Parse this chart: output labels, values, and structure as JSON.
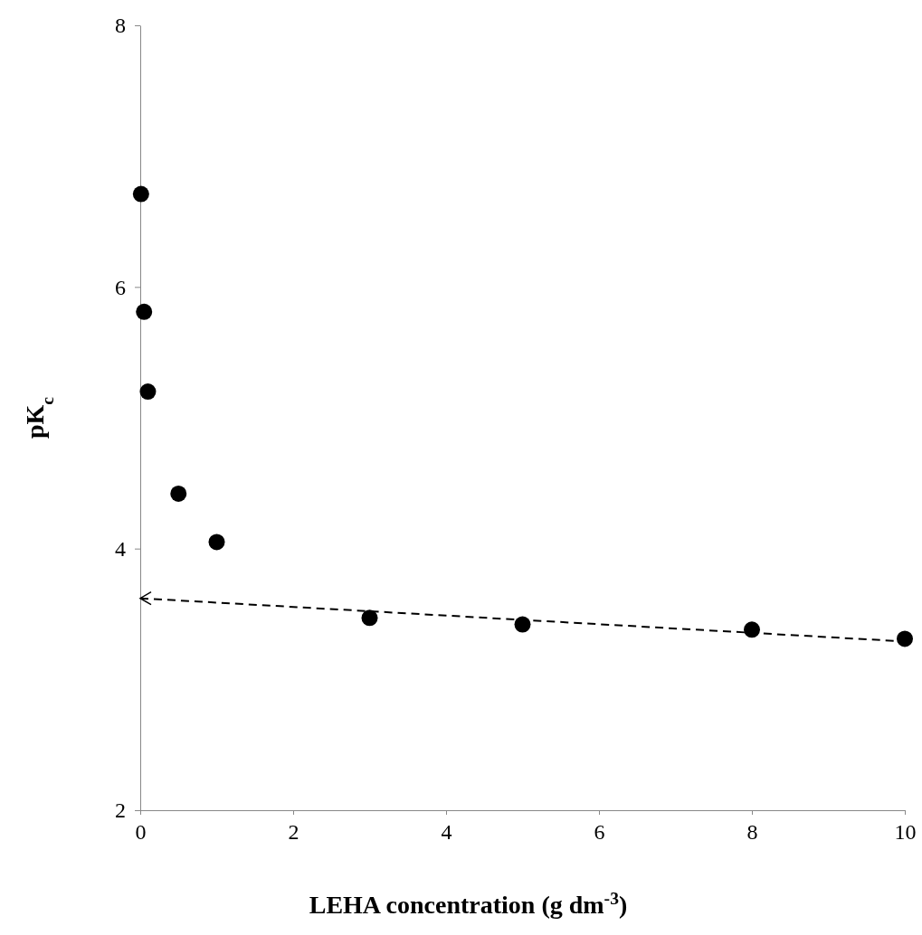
{
  "chart_data": {
    "type": "scatter",
    "xlabel": "LEHA concentration (g dm$^{-3}$)",
    "ylabel": "pK$_{c}$",
    "xlim": [
      0,
      10
    ],
    "ylim": [
      2,
      8
    ],
    "xticks": [
      0,
      2,
      4,
      6,
      8,
      10
    ],
    "yticks": [
      2,
      4,
      6,
      8
    ],
    "grid": false,
    "marker": "circle",
    "series": [
      {
        "type": "scatter",
        "color": "#000000",
        "x": [
          0.01,
          0.05,
          0.1,
          0.5,
          1,
          3,
          5,
          8,
          10
        ],
        "values": [
          6.71,
          5.81,
          5.2,
          4.42,
          4.05,
          3.47,
          3.42,
          3.38,
          3.31
        ]
      },
      {
        "type": "line",
        "color": "#000000",
        "line_style": "dashed",
        "marker": "none",
        "x": [
          0,
          10
        ],
        "values": [
          3.62,
          3.29
        ]
      }
    ]
  }
}
